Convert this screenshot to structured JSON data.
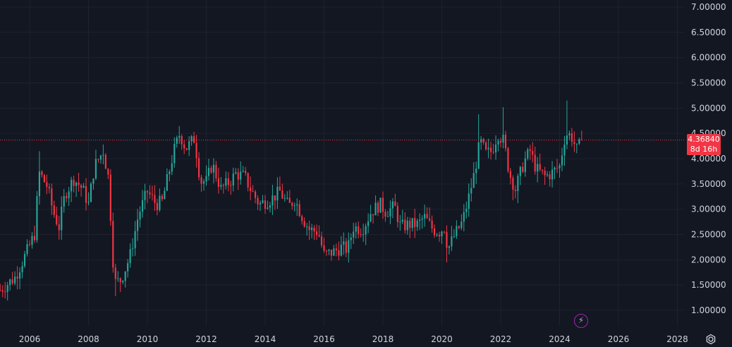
{
  "chart_data": {
    "type": "candlestick",
    "interval": "monthly",
    "y_axis_ticks": [
      "7.00000",
      "6.50000",
      "6.00000",
      "5.50000",
      "5.00000",
      "4.50000",
      "4.00000",
      "3.50000",
      "3.00000",
      "2.50000",
      "2.00000",
      "1.50000",
      "1.00000"
    ],
    "y_axis_values": [
      7.0,
      6.5,
      6.0,
      5.5,
      5.0,
      4.5,
      4.0,
      3.5,
      3.0,
      2.5,
      2.0,
      1.5,
      1.0
    ],
    "x_axis_ticks": [
      "2006",
      "2008",
      "2010",
      "2012",
      "2014",
      "2016",
      "2018",
      "2020",
      "2022",
      "2024",
      "2026",
      "2028"
    ],
    "x_axis_years": [
      2006,
      2008,
      2010,
      2012,
      2014,
      2016,
      2018,
      2020,
      2022,
      2024,
      2026,
      2028
    ],
    "ylim": [
      0.6,
      7.1
    ],
    "last_price": 4.3684,
    "last_price_label": "4.36840",
    "countdown_label": "8d 16h",
    "colors": {
      "up": "#26a69a",
      "down": "#f23645",
      "background": "#131722",
      "grid": "#1e222d",
      "text": "#d1d4dc",
      "price_line": "#f23645"
    },
    "anchors": [
      [
        2005.0,
        1.4
      ],
      [
        2005.5,
        1.65
      ],
      [
        2005.9,
        2.15
      ],
      [
        2006.2,
        2.55
      ],
      [
        2006.3,
        3.75
      ],
      [
        2006.6,
        3.45
      ],
      [
        2006.8,
        2.95
      ],
      [
        2007.0,
        2.65
      ],
      [
        2007.2,
        3.3
      ],
      [
        2007.5,
        3.6
      ],
      [
        2007.8,
        3.4
      ],
      [
        2008.0,
        3.1
      ],
      [
        2008.2,
        3.85
      ],
      [
        2008.5,
        4.15
      ],
      [
        2008.7,
        3.55
      ],
      [
        2008.8,
        2.2
      ],
      [
        2008.9,
        1.55
      ],
      [
        2009.1,
        1.6
      ],
      [
        2009.4,
        2.05
      ],
      [
        2009.7,
        2.9
      ],
      [
        2010.0,
        3.35
      ],
      [
        2010.3,
        3.1
      ],
      [
        2010.5,
        3.15
      ],
      [
        2010.9,
        4.15
      ],
      [
        2011.1,
        4.5
      ],
      [
        2011.3,
        4.2
      ],
      [
        2011.6,
        4.4
      ],
      [
        2011.8,
        3.55
      ],
      [
        2012.0,
        3.55
      ],
      [
        2012.2,
        3.9
      ],
      [
        2012.5,
        3.4
      ],
      [
        2012.8,
        3.55
      ],
      [
        2013.0,
        3.7
      ],
      [
        2013.3,
        3.65
      ],
      [
        2013.5,
        3.4
      ],
      [
        2013.8,
        3.1
      ],
      [
        2014.2,
        3.2
      ],
      [
        2014.5,
        3.35
      ],
      [
        2014.8,
        3.05
      ],
      [
        2015.0,
        3.2
      ],
      [
        2015.3,
        2.8
      ],
      [
        2015.5,
        2.6
      ],
      [
        2015.8,
        2.55
      ],
      [
        2016.0,
        2.1
      ],
      [
        2016.3,
        2.15
      ],
      [
        2016.6,
        2.25
      ],
      [
        2016.8,
        2.2
      ],
      [
        2017.0,
        2.65
      ],
      [
        2017.3,
        2.6
      ],
      [
        2017.6,
        2.95
      ],
      [
        2017.9,
        3.1
      ],
      [
        2018.1,
        2.95
      ],
      [
        2018.4,
        3.05
      ],
      [
        2018.6,
        2.65
      ],
      [
        2018.9,
        2.7
      ],
      [
        2019.2,
        2.7
      ],
      [
        2019.4,
        2.85
      ],
      [
        2019.7,
        2.6
      ],
      [
        2019.9,
        2.55
      ],
      [
        2020.1,
        2.65
      ],
      [
        2020.2,
        2.2
      ],
      [
        2020.4,
        2.45
      ],
      [
        2020.7,
        2.75
      ],
      [
        2020.9,
        3.2
      ],
      [
        2021.1,
        3.7
      ],
      [
        2021.3,
        4.35
      ],
      [
        2021.5,
        4.1
      ],
      [
        2021.7,
        4.15
      ],
      [
        2021.9,
        4.5
      ],
      [
        2022.1,
        4.35
      ],
      [
        2022.3,
        3.7
      ],
      [
        2022.5,
        3.4
      ],
      [
        2022.8,
        3.95
      ],
      [
        2023.0,
        4.15
      ],
      [
        2023.2,
        3.8
      ],
      [
        2023.5,
        3.65
      ],
      [
        2023.7,
        3.7
      ],
      [
        2024.0,
        3.85
      ],
      [
        2024.2,
        4.5
      ],
      [
        2024.4,
        4.45
      ],
      [
        2024.6,
        4.15
      ],
      [
        2024.75,
        4.37
      ]
    ],
    "special_wicks": [
      [
        2024.25,
        5.15
      ],
      [
        2022.1,
        5.02
      ],
      [
        2021.25,
        4.88
      ],
      [
        2006.3,
        4.15
      ],
      [
        2008.5,
        4.28
      ],
      [
        2008.95,
        1.28
      ],
      [
        2020.2,
        1.95
      ],
      [
        2022.55,
        3.12
      ]
    ]
  }
}
